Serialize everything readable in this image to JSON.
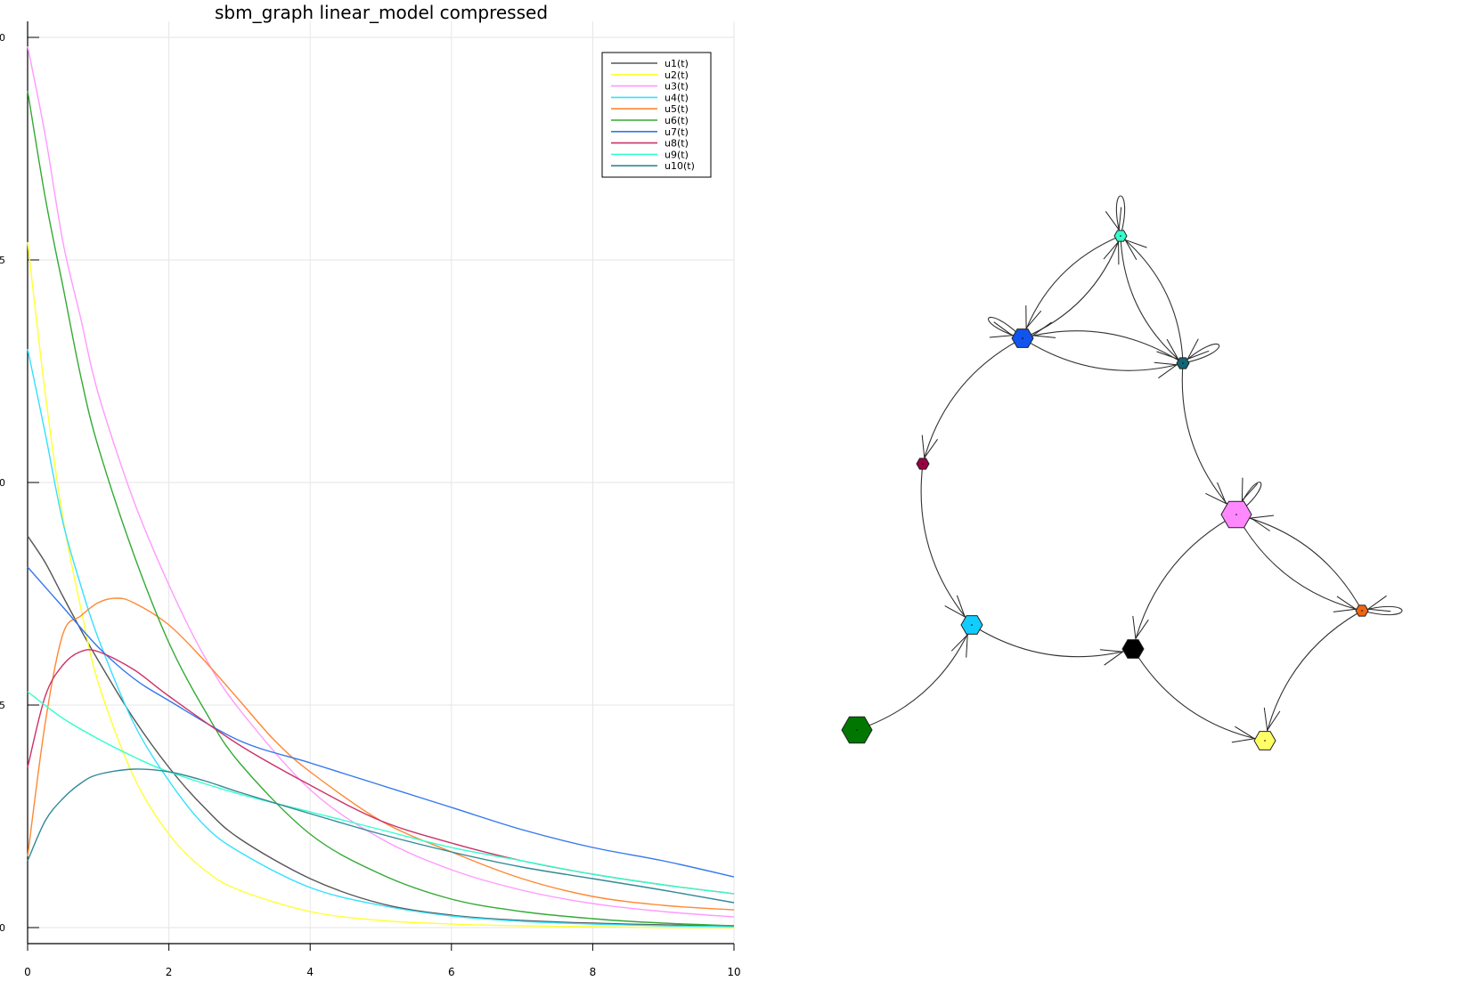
{
  "chart_data": [
    {
      "type": "line",
      "title": "sbm_graph linear_model compressed",
      "xlabel": "",
      "ylabel": "",
      "xlim": [
        0,
        10
      ],
      "ylim": [
        0,
        10
      ],
      "xticks": [
        "0",
        "2",
        "4",
        "6",
        "8",
        "10"
      ],
      "yticks": [
        "0",
        "5",
        "0",
        "5",
        "0"
      ],
      "grid": true,
      "legend_position": "top-right",
      "series": [
        {
          "name": "u1(t)",
          "color": "#555555",
          "x": [
            0,
            0.25,
            0.5,
            0.75,
            1,
            1.5,
            2,
            2.5,
            3,
            4,
            5,
            6,
            7,
            8,
            9,
            10
          ],
          "y": [
            4.4,
            4.1,
            3.72,
            3.35,
            3.0,
            2.35,
            1.8,
            1.35,
            1.0,
            0.55,
            0.27,
            0.14,
            0.08,
            0.05,
            0.03,
            0.02
          ]
        },
        {
          "name": "u2(t)",
          "color": "#ffff33",
          "x": [
            0,
            0.25,
            0.5,
            0.75,
            1,
            1.5,
            2,
            2.5,
            3,
            4,
            5,
            6,
            7,
            8,
            9,
            10
          ],
          "y": [
            7.7,
            6.0,
            4.6,
            3.6,
            2.75,
            1.7,
            1.05,
            0.65,
            0.42,
            0.18,
            0.08,
            0.04,
            0.02,
            0.01,
            0.0,
            0.0
          ]
        },
        {
          "name": "u3(t)",
          "color": "#ff99ff",
          "x": [
            0,
            0.25,
            0.5,
            0.75,
            1,
            1.5,
            2,
            2.5,
            3,
            4,
            5,
            6,
            7,
            8,
            9,
            10
          ],
          "y": [
            9.9,
            8.9,
            7.7,
            6.85,
            6.0,
            4.8,
            3.85,
            3.05,
            2.45,
            1.55,
            1.0,
            0.65,
            0.42,
            0.27,
            0.18,
            0.12
          ]
        },
        {
          "name": "u4(t)",
          "color": "#33e0ff",
          "x": [
            0,
            0.25,
            0.5,
            0.75,
            1,
            1.5,
            2,
            2.5,
            3,
            4,
            5,
            6,
            7,
            8,
            9,
            10
          ],
          "y": [
            6.5,
            5.55,
            4.55,
            3.85,
            3.25,
            2.3,
            1.65,
            1.15,
            0.85,
            0.45,
            0.25,
            0.13,
            0.07,
            0.04,
            0.02,
            0.01
          ]
        },
        {
          "name": "u5(t)",
          "color": "#ff8833",
          "x": [
            0,
            0.25,
            0.5,
            0.75,
            1,
            1.25,
            1.5,
            2,
            2.5,
            3,
            3.5,
            4,
            5,
            6,
            7,
            8,
            9,
            10
          ],
          "y": [
            0.8,
            2.3,
            3.3,
            3.5,
            3.65,
            3.7,
            3.65,
            3.4,
            3.0,
            2.55,
            2.1,
            1.75,
            1.2,
            0.85,
            0.55,
            0.35,
            0.25,
            0.2
          ]
        },
        {
          "name": "u6(t)",
          "color": "#33aa33",
          "x": [
            0,
            0.25,
            0.5,
            0.75,
            1,
            1.5,
            2,
            2.5,
            3,
            4,
            5,
            6,
            7,
            8,
            9,
            10
          ],
          "y": [
            9.4,
            8.2,
            7.2,
            6.2,
            5.4,
            4.2,
            3.2,
            2.45,
            1.85,
            1.05,
            0.6,
            0.32,
            0.18,
            0.1,
            0.05,
            0.02
          ]
        },
        {
          "name": "u7(t)",
          "color": "#3377ee",
          "x": [
            0,
            0.5,
            1,
            1.5,
            2,
            3,
            4,
            5,
            6,
            7,
            8,
            9,
            10
          ],
          "y": [
            4.05,
            3.6,
            3.15,
            2.8,
            2.55,
            2.1,
            1.85,
            1.6,
            1.35,
            1.1,
            0.9,
            0.75,
            0.57
          ]
        },
        {
          "name": "u8(t)",
          "color": "#cc3366",
          "x": [
            0,
            0.25,
            0.5,
            0.75,
            1,
            1.5,
            2,
            3,
            4,
            5,
            6,
            7,
            8,
            9,
            10
          ],
          "y": [
            1.8,
            2.6,
            2.95,
            3.1,
            3.1,
            2.9,
            2.6,
            2.05,
            1.6,
            1.2,
            0.95,
            0.75,
            0.6,
            0.48,
            0.38
          ]
        },
        {
          "name": "u9(t)",
          "color": "#33ffcc",
          "x": [
            0,
            0.5,
            1,
            1.5,
            2,
            3,
            4,
            5,
            6,
            7,
            8,
            9,
            10
          ],
          "y": [
            2.65,
            2.35,
            2.12,
            1.92,
            1.75,
            1.5,
            1.3,
            1.1,
            0.9,
            0.75,
            0.6,
            0.48,
            0.38
          ]
        },
        {
          "name": "u10(t)",
          "color": "#338899",
          "x": [
            0,
            0.25,
            0.5,
            0.75,
            1,
            1.5,
            2,
            2.5,
            3,
            4,
            5,
            6,
            7,
            8,
            9,
            10
          ],
          "y": [
            0.75,
            1.2,
            1.45,
            1.62,
            1.72,
            1.78,
            1.75,
            1.65,
            1.52,
            1.28,
            1.05,
            0.85,
            0.68,
            0.55,
            0.42,
            0.28
          ]
        }
      ]
    },
    {
      "type": "graph",
      "nodes": [
        {
          "id": "n9",
          "color": "#33ffcc",
          "size": "small"
        },
        {
          "id": "n7",
          "color": "#1155ee",
          "size": "medium"
        },
        {
          "id": "n10",
          "color": "#116677",
          "size": "small"
        },
        {
          "id": "n8",
          "color": "#990044",
          "size": "small"
        },
        {
          "id": "n3",
          "color": "#ff88ff",
          "size": "large"
        },
        {
          "id": "n5",
          "color": "#ee6611",
          "size": "small"
        },
        {
          "id": "n4",
          "color": "#11ccff",
          "size": "medium"
        },
        {
          "id": "n1",
          "color": "#000000",
          "size": "medium"
        },
        {
          "id": "n6",
          "color": "#007700",
          "size": "large"
        },
        {
          "id": "n2",
          "color": "#ffff66",
          "size": "medium"
        }
      ],
      "edges": [
        [
          "n9",
          "n9"
        ],
        [
          "n9",
          "n7"
        ],
        [
          "n7",
          "n9"
        ],
        [
          "n9",
          "n10"
        ],
        [
          "n10",
          "n9"
        ],
        [
          "n7",
          "n7"
        ],
        [
          "n7",
          "n10"
        ],
        [
          "n10",
          "n7"
        ],
        [
          "n10",
          "n10"
        ],
        [
          "n7",
          "n8"
        ],
        [
          "n10",
          "n3"
        ],
        [
          "n8",
          "n4"
        ],
        [
          "n6",
          "n4"
        ],
        [
          "n4",
          "n1"
        ],
        [
          "n3",
          "n3"
        ],
        [
          "n3",
          "n1"
        ],
        [
          "n3",
          "n5"
        ],
        [
          "n5",
          "n3"
        ],
        [
          "n5",
          "n5"
        ],
        [
          "n5",
          "n2"
        ],
        [
          "n1",
          "n2"
        ]
      ]
    }
  ]
}
